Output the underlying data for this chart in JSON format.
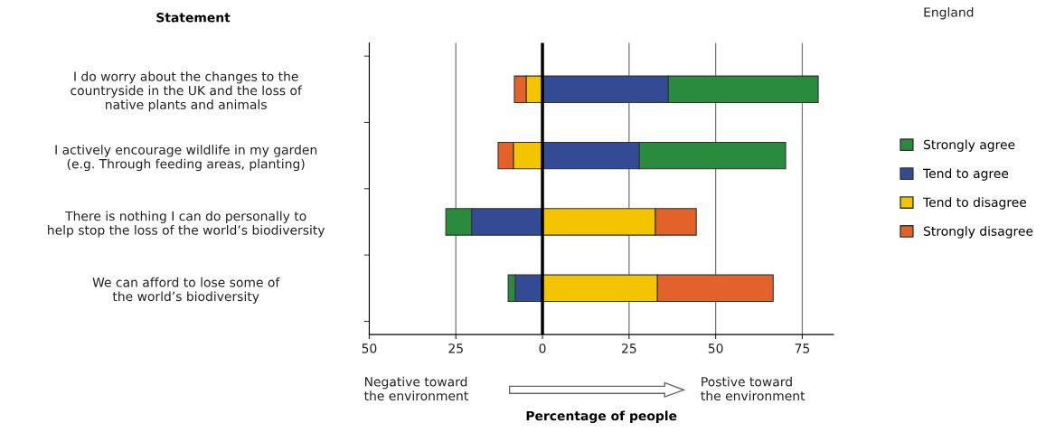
{
  "chart_data": {
    "type": "bar",
    "orientation": "horizontal",
    "ylabel": "Statement",
    "xlabel": "Percentage of people",
    "categories": [
      "I do worry about the changes to the\ncountryside in the UK and the loss of\nnative plants and animals",
      "I actively encourage wildlife in my garden\n(e.g. Through feeding areas, planting)",
      "There is nothing I can do personally to\nhelp stop the loss of the world’s biodiversity",
      "We can afford to lose some of\nthe world’s biodiversity"
    ],
    "series": [
      {
        "name": "Strongly agree",
        "color": "#2a8a3e",
        "base": [
          36.3,
          27.9,
          -27.9,
          -9.9
        ],
        "values": [
          43.3,
          42.3,
          7.5,
          2.1
        ]
      },
      {
        "name": "Tend to agree",
        "color": "#334a94",
        "base": [
          0,
          0,
          -20.4,
          -7.8
        ],
        "values": [
          36.3,
          27.9,
          20.4,
          7.8
        ]
      },
      {
        "name": "Tend to disagree",
        "color": "#f5c400",
        "base": [
          -4.7,
          -8.4,
          0,
          0
        ],
        "values": [
          4.7,
          8.4,
          32.6,
          33.2
        ]
      },
      {
        "name": "Strongly disagree",
        "color": "#e2622a",
        "base": [
          -8.1,
          -12.8,
          32.6,
          33.2
        ],
        "values": [
          3.4,
          4.4,
          11.8,
          33.4
        ]
      }
    ],
    "xlim": [
      -50,
      84
    ],
    "xticks": [
      {
        "value": -50,
        "label": "50"
      },
      {
        "value": -25,
        "label": "25"
      },
      0,
      25,
      50,
      75
    ],
    "ref_lines": [
      {
        "axis": "x",
        "value": 0,
        "color": "#000000"
      }
    ],
    "grid": "x",
    "legend": "right",
    "annotations": [
      "England",
      "Negative toward\nthe environment",
      "Postive toward\nthe environment"
    ]
  }
}
